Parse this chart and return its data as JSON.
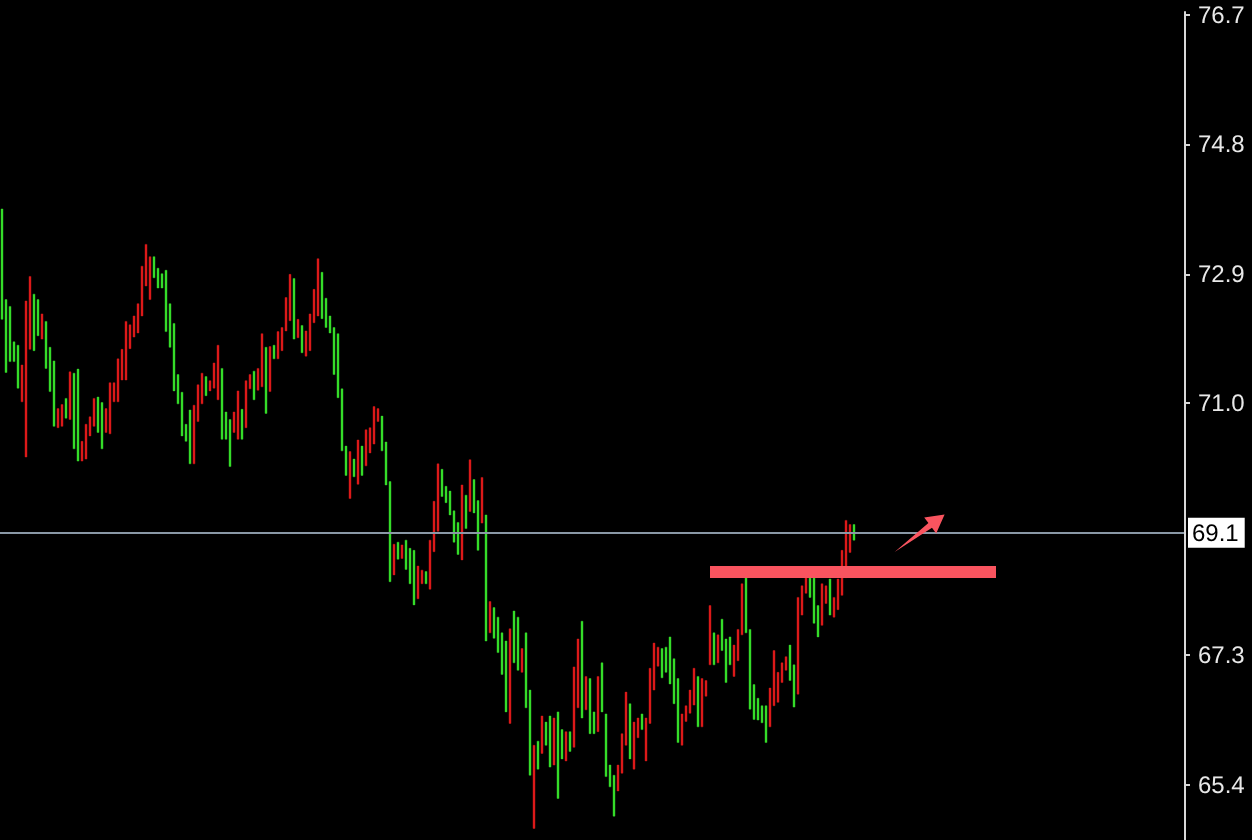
{
  "chart_data": {
    "type": "candlestick",
    "categories": [
      null,
      null,
      null,
      null,
      null,
      null,
      null,
      null,
      null,
      null,
      null,
      null,
      null,
      null,
      null,
      null,
      null,
      null,
      null,
      null,
      null,
      null,
      null,
      null,
      null,
      null,
      null,
      null,
      null,
      null,
      null,
      null,
      null,
      null,
      null,
      null,
      null,
      null,
      null,
      null,
      null,
      null,
      null,
      null,
      null,
      null,
      null,
      null,
      null,
      null,
      null,
      null,
      null,
      null,
      null,
      null,
      null,
      null,
      null,
      null,
      null,
      null,
      null,
      null,
      null,
      null,
      null,
      null,
      null,
      null,
      null,
      null,
      null,
      null,
      null,
      null,
      null,
      null,
      null,
      null,
      null,
      null,
      null,
      null,
      null,
      null,
      null,
      null,
      null,
      null,
      null,
      null,
      null,
      null,
      null,
      null,
      null,
      null,
      null,
      null,
      null,
      null,
      null,
      null,
      null,
      null,
      null,
      null,
      null,
      null,
      null,
      null,
      null,
      null,
      null,
      null,
      null,
      null,
      null,
      null,
      null,
      null,
      null,
      null,
      null,
      null,
      null,
      null,
      null,
      null,
      null,
      null,
      null,
      null,
      null,
      null,
      null,
      null,
      null,
      null,
      null,
      null,
      null,
      null,
      null,
      null,
      null,
      null,
      null,
      null,
      null,
      null,
      null,
      null,
      null,
      null,
      null,
      null,
      null,
      null,
      null,
      null,
      null,
      null,
      null,
      null,
      null,
      null,
      null,
      null,
      null,
      null,
      null,
      null,
      null,
      null,
      null,
      null,
      null,
      null,
      null,
      null,
      null,
      null,
      null,
      null,
      null,
      null,
      null,
      null,
      null,
      null,
      null,
      null,
      null,
      null,
      null,
      null,
      null,
      null,
      null,
      null,
      null,
      null,
      null,
      null,
      null,
      null,
      null,
      null,
      null,
      null,
      null,
      null,
      null,
      null,
      null,
      null,
      null,
      null,
      null,
      null,
      null,
      null,
      null,
      null,
      null,
      null,
      null,
      null,
      null,
      null,
      null,
      null,
      null,
      null,
      null,
      null,
      null,
      null,
      null,
      null,
      null,
      null,
      null,
      null,
      null,
      null,
      null,
      null,
      null,
      null,
      null,
      null,
      null,
      null,
      null,
      null,
      null,
      null,
      null,
      null,
      null,
      null,
      null,
      null,
      null,
      null,
      null,
      null,
      null,
      null,
      null,
      null,
      null,
      null,
      null,
      null,
      null,
      null,
      null,
      null,
      null,
      null,
      null,
      null,
      null,
      null,
      null,
      null,
      null,
      null,
      null,
      null,
      null,
      null
    ],
    "ohlc": [
      [
        72.23,
        73.85,
        72.23,
        73.85
      ],
      [
        71.45,
        72.52,
        71.45,
        72.52
      ],
      [
        71.61,
        72.42,
        71.61,
        72.42
      ],
      [
        71.61,
        71.9,
        71.61,
        71.9
      ],
      [
        71.22,
        71.85,
        71.22,
        71.85
      ],
      [
        71.56,
        71.56,
        71.02,
        71.02
      ],
      [
        72.5,
        72.5,
        70.21,
        70.21
      ],
      [
        72.86,
        72.86,
        71.79,
        71.79
      ],
      [
        71.77,
        72.6,
        71.77,
        72.6
      ],
      [
        71.99,
        72.52,
        71.99,
        72.52
      ],
      [
        72.31,
        72.31,
        71.94,
        71.94
      ],
      [
        71.51,
        72.2,
        71.51,
        72.2
      ],
      [
        71.17,
        71.82,
        71.17,
        71.82
      ],
      [
        70.66,
        71.62,
        70.66,
        71.62
      ],
      [
        70.92,
        70.92,
        70.64,
        70.64
      ],
      [
        70.98,
        70.98,
        70.66,
        70.66
      ],
      [
        70.78,
        71.07,
        70.78,
        71.07
      ],
      [
        71.46,
        71.46,
        70.76,
        70.76
      ],
      [
        70.33,
        71.44,
        70.33,
        71.44
      ],
      [
        70.15,
        71.5,
        70.15,
        71.5
      ],
      [
        70.44,
        70.44,
        70.15,
        70.15
      ],
      [
        70.69,
        70.69,
        70.18,
        70.18
      ],
      [
        70.8,
        70.8,
        70.52,
        70.52
      ],
      [
        71.07,
        71.07,
        70.66,
        70.66
      ],
      [
        70.57,
        71.09,
        70.57,
        71.09
      ],
      [
        70.33,
        71.01,
        70.33,
        71.01
      ],
      [
        70.92,
        70.92,
        70.57,
        70.57
      ],
      [
        71.3,
        71.3,
        70.55,
        70.55
      ],
      [
        71.3,
        71.3,
        71.02,
        71.02
      ],
      [
        71.65,
        71.65,
        71.02,
        71.02
      ],
      [
        71.79,
        71.79,
        71.34,
        71.34
      ],
      [
        72.2,
        72.2,
        71.34,
        71.34
      ],
      [
        72.15,
        72.15,
        71.8,
        71.8
      ],
      [
        72.28,
        72.28,
        71.97,
        71.97
      ],
      [
        72.46,
        72.46,
        72.03,
        72.03
      ],
      [
        73.01,
        73.01,
        72.28,
        72.28
      ],
      [
        73.33,
        73.33,
        72.72,
        72.72
      ],
      [
        73.15,
        73.15,
        72.52,
        72.52
      ],
      [
        72.84,
        73.15,
        72.84,
        73.15
      ],
      [
        72.69,
        72.98,
        72.69,
        72.98
      ],
      [
        72.69,
        72.9,
        72.69,
        72.9
      ],
      [
        72.05,
        72.95,
        72.05,
        72.95
      ],
      [
        71.82,
        72.46,
        71.82,
        72.46
      ],
      [
        71.18,
        72.17,
        71.18,
        72.17
      ],
      [
        70.99,
        71.42,
        70.99,
        71.42
      ],
      [
        70.52,
        71.16,
        70.52,
        71.16
      ],
      [
        70.44,
        70.69,
        70.44,
        70.69
      ],
      [
        70.11,
        70.9,
        70.11,
        70.9
      ],
      [
        70.97,
        70.97,
        70.11,
        70.11
      ],
      [
        71.27,
        71.27,
        70.73,
        70.73
      ],
      [
        71.44,
        71.44,
        70.99,
        70.99
      ],
      [
        71.11,
        71.39,
        71.11,
        71.39
      ],
      [
        71.33,
        71.33,
        71.18,
        71.18
      ],
      [
        71.59,
        71.59,
        71.22,
        71.22
      ],
      [
        71.85,
        71.85,
        71.05,
        71.05
      ],
      [
        70.47,
        71.51,
        70.47,
        71.51
      ],
      [
        70.47,
        70.87,
        70.47,
        70.87
      ],
      [
        70.07,
        70.76,
        70.07,
        70.76
      ],
      [
        70.87,
        70.87,
        70.57,
        70.57
      ],
      [
        71.18,
        71.18,
        70.47,
        70.47
      ],
      [
        70.47,
        70.91,
        70.47,
        70.91
      ],
      [
        71.33,
        71.33,
        70.64,
        70.64
      ],
      [
        71.42,
        71.42,
        71.21,
        71.21
      ],
      [
        71.05,
        71.47,
        71.05,
        71.47
      ],
      [
        71.51,
        71.51,
        71.19,
        71.19
      ],
      [
        72.02,
        72.02,
        71.24,
        71.24
      ],
      [
        70.85,
        71.82,
        70.85,
        71.82
      ],
      [
        71.83,
        71.83,
        71.17,
        71.17
      ],
      [
        71.65,
        71.85,
        71.65,
        71.85
      ],
      [
        72.05,
        72.05,
        71.65,
        71.65
      ],
      [
        72.11,
        72.11,
        71.77,
        71.77
      ],
      [
        72.55,
        72.55,
        72.06,
        72.06
      ],
      [
        72.89,
        72.89,
        72.21,
        72.21
      ],
      [
        71.94,
        72.83,
        71.94,
        72.83
      ],
      [
        72.23,
        72.23,
        71.96,
        71.96
      ],
      [
        71.74,
        72.14,
        71.74,
        72.14
      ],
      [
        72.06,
        72.06,
        71.69,
        71.69
      ],
      [
        72.31,
        72.31,
        71.77,
        71.77
      ],
      [
        72.67,
        72.67,
        72.18,
        72.18
      ],
      [
        73.12,
        73.12,
        72.28,
        72.28
      ],
      [
        72.24,
        72.92,
        72.24,
        72.92
      ],
      [
        72.11,
        72.54,
        72.11,
        72.54
      ],
      [
        72.03,
        72.28,
        72.03,
        72.28
      ],
      [
        71.42,
        72.11,
        71.42,
        72.11
      ],
      [
        71.08,
        72.02,
        71.08,
        72.02
      ],
      [
        70.3,
        71.21,
        70.3,
        71.21
      ],
      [
        69.94,
        70.37,
        69.94,
        70.37
      ],
      [
        70.29,
        70.29,
        69.6,
        69.6
      ],
      [
        69.92,
        70.18,
        69.92,
        70.18
      ],
      [
        70.46,
        70.46,
        69.81,
        69.81
      ],
      [
        69.94,
        70.37,
        69.94,
        70.37
      ],
      [
        70.61,
        70.61,
        70.08,
        70.08
      ],
      [
        70.64,
        70.64,
        70.27,
        70.27
      ],
      [
        70.95,
        70.95,
        70.4,
        70.4
      ],
      [
        70.92,
        70.92,
        70.73,
        70.73
      ],
      [
        70.3,
        70.81,
        70.3,
        70.81
      ],
      [
        69.8,
        70.43,
        69.8,
        70.43
      ],
      [
        68.38,
        69.85,
        68.38,
        69.85
      ],
      [
        68.93,
        68.93,
        68.48,
        68.48
      ],
      [
        68.71,
        68.96,
        68.71,
        68.96
      ],
      [
        68.92,
        68.92,
        68.72,
        68.72
      ],
      [
        68.56,
        68.99,
        68.56,
        68.99
      ],
      [
        68.35,
        68.87,
        68.35,
        68.87
      ],
      [
        68.04,
        68.84,
        68.04,
        68.84
      ],
      [
        68.61,
        68.61,
        68.13,
        68.13
      ],
      [
        68.55,
        68.55,
        68.35,
        68.35
      ],
      [
        68.35,
        68.53,
        68.35,
        68.53
      ],
      [
        68.99,
        68.99,
        68.27,
        68.27
      ],
      [
        69.56,
        69.56,
        68.82,
        68.82
      ],
      [
        70.11,
        70.11,
        69.12,
        69.12
      ],
      [
        69.63,
        70.03,
        69.63,
        70.03
      ],
      [
        69.54,
        69.78,
        69.54,
        69.78
      ],
      [
        69.36,
        69.71,
        69.36,
        69.71
      ],
      [
        68.96,
        69.42,
        68.96,
        69.42
      ],
      [
        68.78,
        69.25,
        68.78,
        69.25
      ],
      [
        69.8,
        69.8,
        68.7,
        68.7
      ],
      [
        69.16,
        69.65,
        69.16,
        69.65
      ],
      [
        70.17,
        70.17,
        69.41,
        69.41
      ],
      [
        69.39,
        69.88,
        69.39,
        69.88
      ],
      [
        68.84,
        69.57,
        68.84,
        69.57
      ],
      [
        69.91,
        69.91,
        69.24,
        69.24
      ],
      [
        67.51,
        69.36,
        67.51,
        69.36
      ],
      [
        68.09,
        68.09,
        67.63,
        67.63
      ],
      [
        67.55,
        68,
        67.55,
        68
      ],
      [
        67.34,
        67.86,
        67.34,
        67.86
      ],
      [
        67.02,
        67.63,
        67.02,
        67.63
      ],
      [
        66.47,
        67.51,
        66.47,
        67.51
      ],
      [
        67.69,
        67.69,
        66.3,
        66.3
      ],
      [
        67.19,
        67.95,
        67.19,
        67.95
      ],
      [
        67.08,
        67.86,
        67.08,
        67.86
      ],
      [
        67.4,
        67.4,
        67.05,
        67.05
      ],
      [
        66.53,
        67.63,
        66.53,
        67.63
      ],
      [
        65.54,
        66.79,
        65.54,
        66.79
      ],
      [
        65.98,
        65.98,
        64.76,
        64.76
      ],
      [
        65.63,
        66.04,
        65.63,
        66.04
      ],
      [
        66.41,
        66.41,
        65.86,
        65.86
      ],
      [
        65.98,
        66.32,
        65.98,
        66.32
      ],
      [
        65.66,
        66.41,
        65.66,
        66.41
      ],
      [
        66.38,
        66.38,
        65.69,
        65.69
      ],
      [
        65.2,
        66.47,
        65.2,
        66.47
      ],
      [
        65.78,
        66.21,
        65.78,
        66.21
      ],
      [
        66.18,
        66.18,
        65.75,
        65.75
      ],
      [
        65.89,
        66.18,
        65.89,
        66.18
      ],
      [
        67.13,
        67.13,
        65.95,
        65.95
      ],
      [
        67.54,
        67.54,
        66.53,
        66.53
      ],
      [
        66.38,
        67.8,
        66.38,
        67.8
      ],
      [
        66.99,
        66.99,
        66.5,
        66.5
      ],
      [
        66.15,
        66.96,
        66.15,
        66.96
      ],
      [
        66.15,
        66.47,
        66.15,
        66.47
      ],
      [
        66.99,
        66.99,
        66.18,
        66.18
      ],
      [
        66.47,
        67.19,
        66.47,
        67.19
      ],
      [
        65.52,
        66.44,
        65.52,
        66.44
      ],
      [
        65.37,
        65.69,
        65.37,
        65.69
      ],
      [
        64.94,
        65.54,
        64.94,
        65.54
      ],
      [
        65.69,
        65.69,
        65.31,
        65.31
      ],
      [
        66.15,
        66.15,
        65.57,
        65.57
      ],
      [
        66.76,
        66.76,
        65.98,
        65.98
      ],
      [
        65.78,
        66.59,
        65.78,
        66.59
      ],
      [
        66.32,
        66.32,
        65.63,
        65.63
      ],
      [
        66.38,
        66.38,
        66.09,
        66.09
      ],
      [
        66.21,
        66.44,
        66.21,
        66.44
      ],
      [
        66.38,
        66.38,
        65.75,
        65.75
      ],
      [
        67.11,
        67.11,
        66.3,
        66.3
      ],
      [
        67.48,
        67.48,
        66.79,
        66.79
      ],
      [
        67.42,
        67.42,
        67.14,
        67.14
      ],
      [
        66.97,
        67.4,
        66.97,
        67.4
      ],
      [
        67.05,
        67.42,
        67.05,
        67.42
      ],
      [
        66.88,
        67.57,
        66.88,
        67.57
      ],
      [
        66.59,
        67.25,
        66.59,
        67.25
      ],
      [
        66.02,
        66.96,
        66.02,
        66.96
      ],
      [
        66.44,
        66.44,
        65.98,
        65.98
      ],
      [
        66.56,
        66.56,
        66.33,
        66.33
      ],
      [
        66.79,
        66.79,
        66.45,
        66.45
      ],
      [
        67.11,
        67.11,
        66.57,
        66.57
      ],
      [
        66.25,
        66.99,
        66.25,
        66.99
      ],
      [
        66.96,
        66.96,
        66.25,
        66.25
      ],
      [
        66.93,
        66.93,
        66.7,
        66.7
      ],
      [
        68.03,
        68.03,
        67.16,
        67.16
      ],
      [
        67.16,
        67.63,
        67.16,
        67.63
      ],
      [
        67.6,
        67.6,
        67.19,
        67.19
      ],
      [
        67.37,
        67.83,
        67.37,
        67.83
      ],
      [
        66.9,
        67.54,
        66.9,
        67.54
      ],
      [
        67.16,
        67.57,
        67.16,
        67.57
      ],
      [
        67.45,
        67.45,
        66.99,
        66.99
      ],
      [
        67.68,
        67.68,
        67.22,
        67.22
      ],
      [
        68.35,
        68.35,
        67.6,
        67.6
      ],
      [
        67.63,
        68.44,
        67.63,
        68.44
      ],
      [
        66.51,
        67.68,
        66.51,
        67.68
      ],
      [
        66.36,
        66.87,
        66.36,
        66.87
      ],
      [
        66.35,
        66.67,
        66.35,
        66.67
      ],
      [
        66.31,
        66.56,
        66.31,
        66.56
      ],
      [
        66.02,
        66.56,
        66.02,
        66.56
      ],
      [
        66.82,
        66.82,
        66.25,
        66.25
      ],
      [
        67.37,
        67.37,
        66.56,
        66.56
      ],
      [
        67.05,
        67.05,
        66.61,
        66.61
      ],
      [
        67.19,
        67.19,
        66.9,
        66.9
      ],
      [
        67.28,
        67.28,
        67.08,
        67.08
      ],
      [
        66.93,
        67.45,
        66.93,
        67.45
      ],
      [
        66.54,
        67.16,
        66.54,
        67.16
      ],
      [
        68.15,
        68.15,
        66.73,
        66.73
      ],
      [
        68.32,
        68.32,
        67.89,
        67.89
      ],
      [
        68.58,
        68.58,
        68.21,
        68.21
      ],
      [
        68.15,
        68.44,
        68.15,
        68.44
      ],
      [
        67.77,
        68.44,
        67.77,
        68.44
      ],
      [
        67.57,
        68.03,
        67.57,
        68.03
      ],
      [
        68.35,
        68.35,
        67.74,
        67.74
      ],
      [
        68.32,
        68.32,
        68.06,
        68.06
      ],
      [
        67.89,
        68.42,
        67.89,
        68.42
      ],
      [
        68.15,
        68.15,
        67.86,
        67.86
      ],
      [
        68.42,
        68.42,
        67.97,
        67.97
      ],
      [
        68.84,
        68.84,
        68.18,
        68.18
      ],
      [
        69.28,
        69.28,
        68.44,
        68.44
      ],
      [
        69.22,
        69.22,
        68.81,
        68.81
      ],
      [
        68.99,
        69.22,
        68.99,
        69.22
      ],
      null,
      null,
      null,
      null,
      null,
      null,
      null,
      null,
      null,
      null,
      null,
      null,
      null,
      null,
      null,
      null,
      null,
      null,
      null,
      null,
      null,
      null,
      null,
      null,
      null,
      null,
      null,
      null,
      null,
      null,
      null,
      null,
      null,
      null,
      null,
      null,
      null,
      null,
      null,
      null,
      null,
      null,
      null,
      null,
      null,
      null,
      null,
      null,
      null,
      null,
      null,
      null,
      null,
      null,
      null,
      null,
      null,
      null,
      null,
      null,
      null,
      null,
      null,
      null,
      null,
      null,
      null,
      null,
      null,
      null,
      null,
      null,
      null,
      null,
      null,
      null,
      null,
      null,
      null,
      null,
      null,
      null
    ],
    "colors": [
      "#36dc2a",
      "#36dc2a",
      "#36dc2a",
      "#36dc2a",
      "#36dc2a",
      "#dc1a1a",
      "#dc1a1a",
      "#dc1a1a",
      "#36dc2a",
      "#36dc2a",
      "#dc1a1a",
      "#36dc2a",
      "#36dc2a",
      "#36dc2a",
      "#dc1a1a",
      "#dc1a1a",
      "#36dc2a",
      "#dc1a1a",
      "#36dc2a",
      "#36dc2a",
      "#dc1a1a",
      "#dc1a1a",
      "#dc1a1a",
      "#dc1a1a",
      "#36dc2a",
      "#36dc2a",
      "#dc1a1a",
      "#dc1a1a",
      "#dc1a1a",
      "#dc1a1a",
      "#dc1a1a",
      "#dc1a1a",
      "#dc1a1a",
      "#dc1a1a",
      "#dc1a1a",
      "#dc1a1a",
      "#dc1a1a",
      "#dc1a1a",
      "#36dc2a",
      "#36dc2a",
      "#36dc2a",
      "#36dc2a",
      "#36dc2a",
      "#36dc2a",
      "#36dc2a",
      "#36dc2a",
      "#36dc2a",
      "#36dc2a",
      "#dc1a1a",
      "#dc1a1a",
      "#dc1a1a",
      "#36dc2a",
      "#dc1a1a",
      "#dc1a1a",
      "#dc1a1a",
      "#36dc2a",
      "#36dc2a",
      "#36dc2a",
      "#dc1a1a",
      "#dc1a1a",
      "#36dc2a",
      "#dc1a1a",
      "#dc1a1a",
      "#36dc2a",
      "#dc1a1a",
      "#dc1a1a",
      "#36dc2a",
      "#dc1a1a",
      "#36dc2a",
      "#dc1a1a",
      "#dc1a1a",
      "#dc1a1a",
      "#dc1a1a",
      "#36dc2a",
      "#dc1a1a",
      "#36dc2a",
      "#dc1a1a",
      "#dc1a1a",
      "#dc1a1a",
      "#dc1a1a",
      "#36dc2a",
      "#36dc2a",
      "#36dc2a",
      "#36dc2a",
      "#36dc2a",
      "#36dc2a",
      "#36dc2a",
      "#dc1a1a",
      "#36dc2a",
      "#dc1a1a",
      "#36dc2a",
      "#dc1a1a",
      "#dc1a1a",
      "#dc1a1a",
      "#dc1a1a",
      "#36dc2a",
      "#36dc2a",
      "#36dc2a",
      "#dc1a1a",
      "#36dc2a",
      "#dc1a1a",
      "#36dc2a",
      "#36dc2a",
      "#36dc2a",
      "#dc1a1a",
      "#dc1a1a",
      "#36dc2a",
      "#dc1a1a",
      "#dc1a1a",
      "#dc1a1a",
      "#36dc2a",
      "#36dc2a",
      "#36dc2a",
      "#36dc2a",
      "#36dc2a",
      "#dc1a1a",
      "#36dc2a",
      "#dc1a1a",
      "#36dc2a",
      "#36dc2a",
      "#dc1a1a",
      "#36dc2a",
      "#dc1a1a",
      "#36dc2a",
      "#36dc2a",
      "#36dc2a",
      "#36dc2a",
      "#dc1a1a",
      "#36dc2a",
      "#36dc2a",
      "#dc1a1a",
      "#36dc2a",
      "#36dc2a",
      "#dc1a1a",
      "#36dc2a",
      "#dc1a1a",
      "#36dc2a",
      "#36dc2a",
      "#dc1a1a",
      "#36dc2a",
      "#36dc2a",
      "#dc1a1a",
      "#36dc2a",
      "#dc1a1a",
      "#dc1a1a",
      "#36dc2a",
      "#dc1a1a",
      "#36dc2a",
      "#36dc2a",
      "#dc1a1a",
      "#36dc2a",
      "#36dc2a",
      "#36dc2a",
      "#36dc2a",
      "#dc1a1a",
      "#dc1a1a",
      "#dc1a1a",
      "#36dc2a",
      "#dc1a1a",
      "#dc1a1a",
      "#36dc2a",
      "#dc1a1a",
      "#dc1a1a",
      "#dc1a1a",
      "#dc1a1a",
      "#36dc2a",
      "#36dc2a",
      "#36dc2a",
      "#36dc2a",
      "#36dc2a",
      "#dc1a1a",
      "#dc1a1a",
      "#dc1a1a",
      "#dc1a1a",
      "#36dc2a",
      "#dc1a1a",
      "#dc1a1a",
      "#dc1a1a",
      "#36dc2a",
      "#dc1a1a",
      "#36dc2a",
      "#36dc2a",
      "#36dc2a",
      "#dc1a1a",
      "#dc1a1a",
      "#dc1a1a",
      "#36dc2a",
      "#36dc2a",
      "#36dc2a",
      "#36dc2a",
      "#36dc2a",
      "#36dc2a",
      "#dc1a1a",
      "#dc1a1a",
      "#dc1a1a",
      "#dc1a1a",
      "#dc1a1a",
      "#36dc2a",
      "#36dc2a",
      "#dc1a1a",
      "#dc1a1a",
      "#dc1a1a",
      "#36dc2a",
      "#36dc2a",
      "#36dc2a",
      "#dc1a1a",
      "#dc1a1a",
      "#36dc2a",
      "#dc1a1a",
      "#dc1a1a",
      "#dc1a1a",
      "#dc1a1a",
      "#dc1a1a",
      "#36dc2a",
      null,
      null,
      null,
      null,
      null,
      null,
      null,
      null,
      null,
      null,
      null,
      null,
      null,
      null,
      null,
      null,
      null,
      null,
      null,
      null,
      null,
      null,
      null,
      null,
      null,
      null,
      null,
      null,
      null,
      null,
      null,
      null,
      null,
      null,
      null,
      null,
      null,
      null,
      null,
      null,
      null,
      null,
      null,
      null,
      null,
      null,
      null,
      null,
      null,
      null,
      null,
      null,
      null,
      null,
      null,
      null,
      null,
      null,
      null,
      null,
      null,
      null,
      null,
      null,
      null,
      null,
      null,
      null,
      null,
      null,
      null,
      null,
      null,
      null,
      null,
      null,
      null,
      null,
      null,
      null,
      null,
      null
    ],
    "ylim": [
      64.59,
      76.74
    ],
    "yticks": [
      65.4,
      67.3,
      {
        "value": 71,
        "label": "71.0"
      },
      72.9,
      74.8,
      76.7
    ],
    "ref_lines": [
      {
        "axis": "y",
        "value": 69.1,
        "label": "69.1",
        "color": "#8a98a6"
      }
    ],
    "tick_labels": "y"
  }
}
